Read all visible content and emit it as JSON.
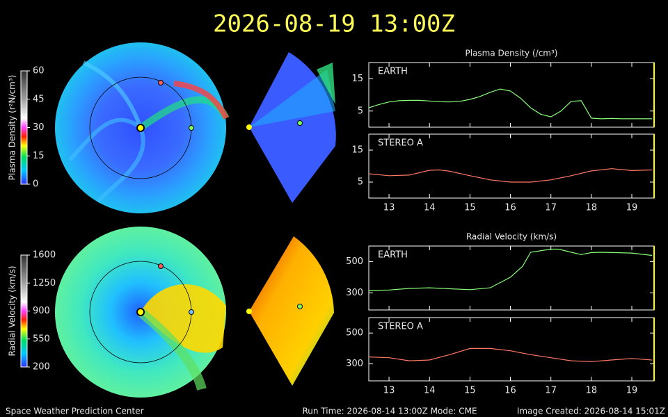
{
  "header": {
    "title": "2026-08-19 13:00Z"
  },
  "colorbars": [
    {
      "label": "Plasma Density (r²N/cm³)",
      "range": [
        0,
        60
      ],
      "ticks": [
        0,
        15,
        30,
        45,
        60
      ]
    },
    {
      "label": "Radial Velocity (km/s)",
      "range": [
        200,
        1600
      ],
      "ticks": [
        200,
        550,
        900,
        1250,
        1600
      ]
    }
  ],
  "chart_data": [
    {
      "type": "line",
      "title": "Plasma Density (/cm³)",
      "x": [
        12.5,
        12.75,
        13,
        13.25,
        13.5,
        13.75,
        14,
        14.25,
        14.5,
        14.75,
        15,
        15.25,
        15.5,
        15.75,
        16,
        16.25,
        16.5,
        16.75,
        17,
        17.25,
        17.5,
        17.75,
        18,
        18.25,
        18.5,
        18.75,
        19,
        19.25,
        19.5
      ],
      "series": [
        {
          "name": "EARTH",
          "color": "#88ff77",
          "values": [
            6,
            7,
            7.8,
            8.2,
            8.3,
            8.3,
            8.1,
            7.9,
            7.8,
            8,
            8.6,
            9.5,
            10.8,
            11.8,
            11.2,
            9,
            6,
            4,
            3.2,
            5,
            8,
            8.2,
            2.8,
            2.6,
            2.7,
            2.6,
            2.6,
            2.6,
            2.6
          ]
        }
      ],
      "xlim": [
        12.5,
        19.55
      ],
      "xticks": [
        13,
        14,
        15,
        16,
        17,
        18,
        19
      ],
      "ylim": [
        0,
        20
      ],
      "yticks": [
        5,
        15
      ]
    },
    {
      "type": "line",
      "x": [
        12.5,
        13,
        13.5,
        14,
        14.25,
        14.5,
        15,
        15.5,
        16,
        16.5,
        17,
        17.5,
        18,
        18.5,
        19,
        19.5
      ],
      "series": [
        {
          "name": "STEREO A",
          "color": "#ff7766",
          "values": [
            7.6,
            7,
            7.2,
            8.7,
            8.8,
            8.4,
            7,
            5.7,
            5,
            5,
            5.7,
            7,
            8.5,
            9.2,
            8.6,
            8.8
          ]
        }
      ],
      "xlim": [
        12.5,
        19.55
      ],
      "xticks": [
        13,
        14,
        15,
        16,
        17,
        18,
        19
      ],
      "ylim": [
        0,
        20
      ],
      "yticks": [
        5,
        15
      ]
    },
    {
      "type": "line",
      "title": "Radial Velocity (km/s)",
      "x": [
        12.5,
        13,
        13.5,
        14,
        14.5,
        15,
        15.5,
        16,
        16.3,
        16.5,
        17,
        17.2,
        17.5,
        17.75,
        18,
        18.25,
        19,
        19.5
      ],
      "series": [
        {
          "name": "EARTH",
          "color": "#88ff77",
          "values": [
            315,
            318,
            328,
            332,
            326,
            320,
            332,
            400,
            470,
            560,
            580,
            580,
            560,
            545,
            558,
            560,
            555,
            540
          ]
        }
      ],
      "xlim": [
        12.5,
        19.55
      ],
      "xticks": [
        13,
        14,
        15,
        16,
        17,
        18,
        19
      ],
      "ylim": [
        190,
        600
      ],
      "yticks": [
        300,
        500
      ]
    },
    {
      "type": "line",
      "x": [
        12.5,
        13,
        13.5,
        14,
        14.5,
        15,
        15.5,
        16,
        16.5,
        17,
        17.5,
        18,
        18.5,
        19,
        19.5
      ],
      "series": [
        {
          "name": "STEREO A",
          "color": "#ff7766",
          "values": [
            345,
            340,
            320,
            325,
            360,
            400,
            400,
            385,
            360,
            340,
            320,
            315,
            325,
            335,
            325
          ]
        }
      ],
      "xlim": [
        12.5,
        19.55
      ],
      "xticks": [
        13,
        14,
        15,
        16,
        17,
        18,
        19
      ],
      "ylim": [
        190,
        600
      ],
      "yticks": [
        300,
        500
      ]
    }
  ],
  "footer": {
    "left": "Space Weather Prediction Center",
    "center": "Run Time: 2026-08-14 13:00Z  Mode: CME",
    "right": "Image Created: 2026-08-14 15:01Z"
  }
}
